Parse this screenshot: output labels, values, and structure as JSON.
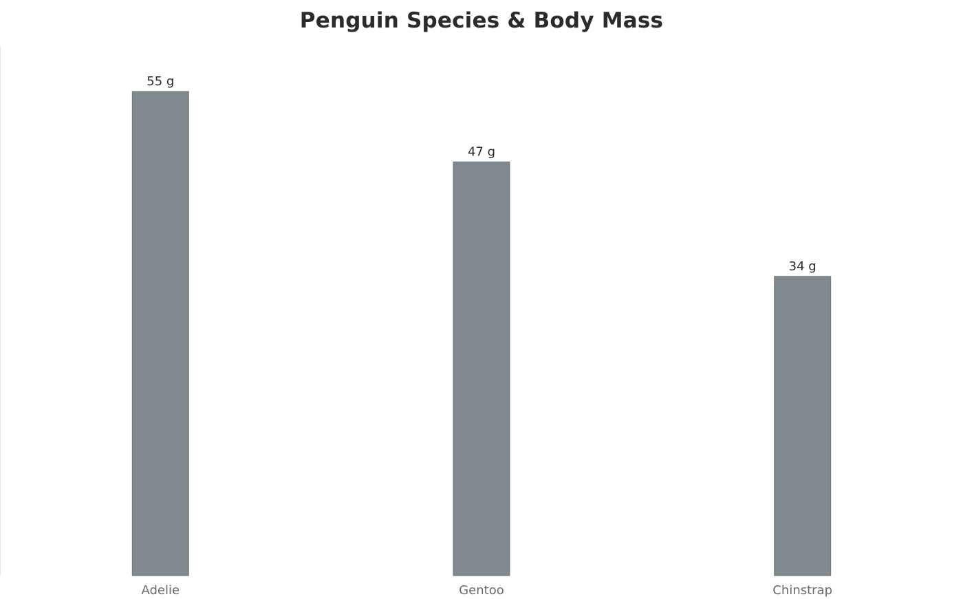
{
  "chart_data": {
    "type": "bar",
    "title": "Penguin Species & Body Mass",
    "xlabel": "",
    "ylabel": "",
    "categories": [
      "Adelie",
      "Gentoo",
      "Chinstrap"
    ],
    "values": [
      55,
      47,
      34
    ],
    "data_labels": [
      "55 g",
      "47 g",
      "34 g"
    ],
    "ylim": [
      0,
      55
    ],
    "grid": false,
    "bar_color": "#808a8e"
  }
}
